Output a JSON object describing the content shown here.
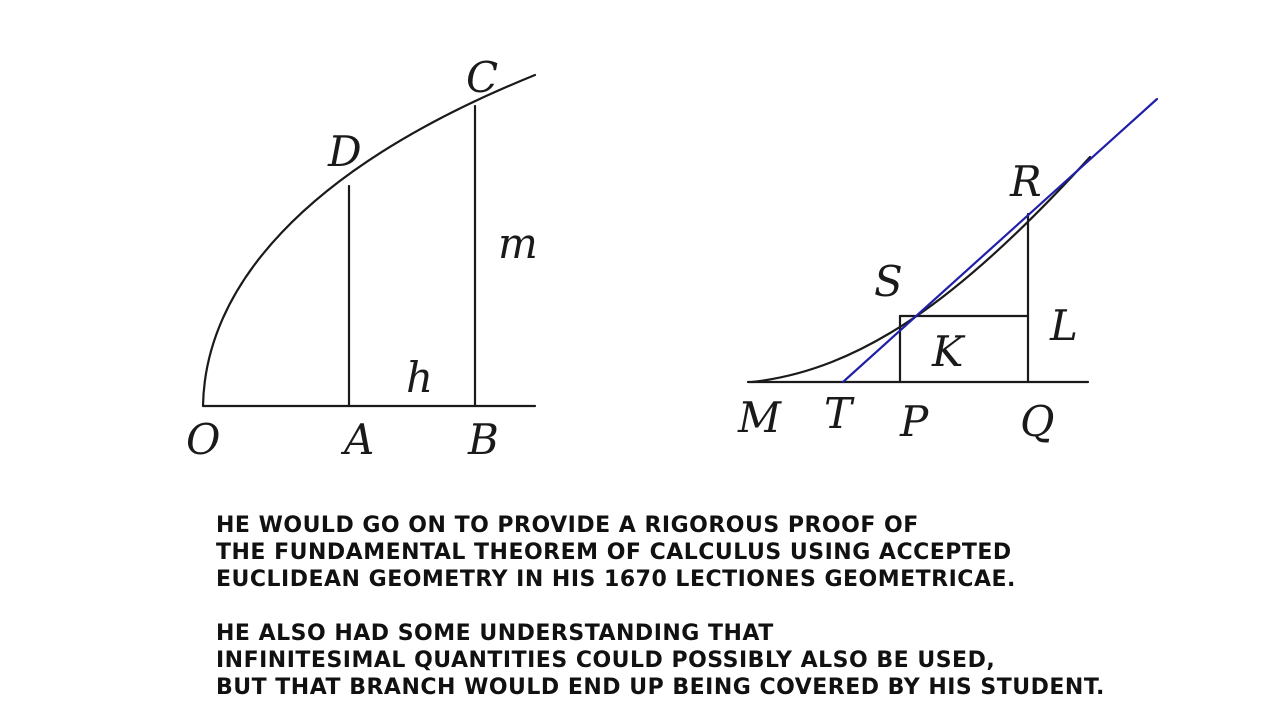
{
  "left_figure": {
    "labels": {
      "C": "C",
      "D": "D",
      "m": "m",
      "h": "h",
      "O": "O",
      "A": "A",
      "B": "B"
    }
  },
  "right_figure": {
    "labels": {
      "R": "R",
      "S": "S",
      "L": "L",
      "K": "K",
      "M": "M",
      "T": "T",
      "P": "P",
      "Q": "Q"
    },
    "tangent_color": "#1f1fa8"
  },
  "caption": {
    "paragraph1": [
      "He would go on to provide a rigorous proof of",
      "the fundamental theorem of calculus using accepted",
      "Euclidean geometry in his 1670 Lectiones Geometricae."
    ],
    "paragraph2": [
      "He also had some understanding that",
      "infinitesimal quantities could possibly also be used,",
      "but that branch would end up being covered by his student."
    ]
  }
}
